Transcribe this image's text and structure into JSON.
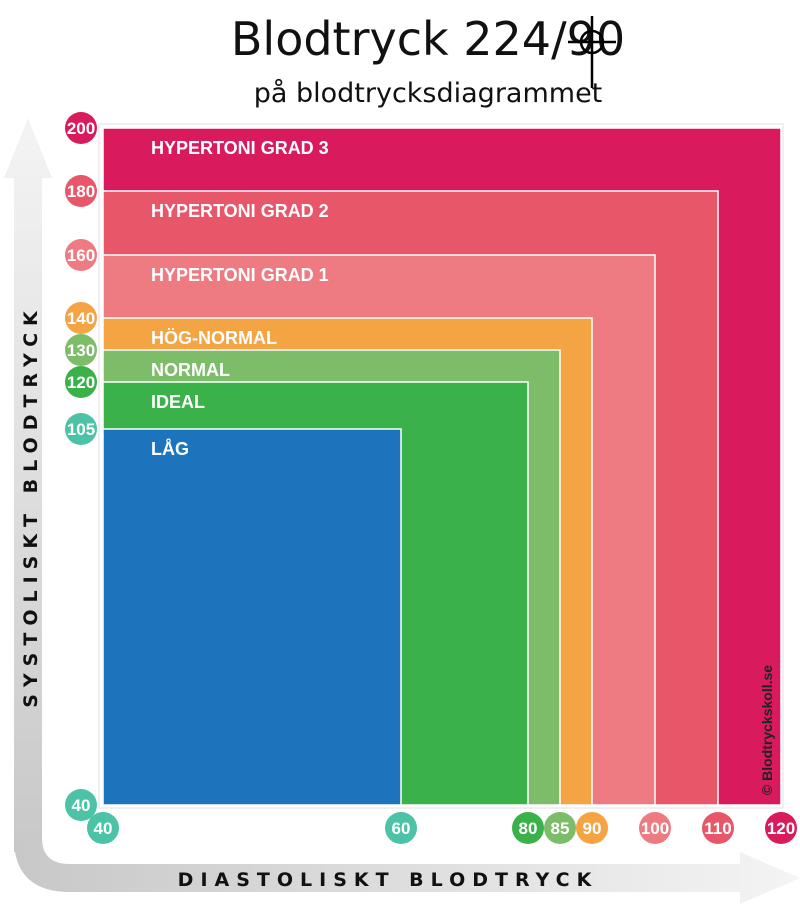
{
  "title": "Blodtryck 224/90",
  "subtitle": "på blodtrycksdiagrammet",
  "credit": "© Blodtryckskoll.se",
  "chart_data": {
    "type": "area",
    "ylabel": "SYSTOLISKT BLODTRYCK",
    "xlabel": "DIASTOLISKT BLODTRYCK",
    "y_ticks": [
      {
        "value": 200,
        "label": "200",
        "color": "#d91a5c"
      },
      {
        "value": 180,
        "label": "180",
        "color": "#e8566a"
      },
      {
        "value": 160,
        "label": "160",
        "color": "#ef7b82"
      },
      {
        "value": 140,
        "label": "140",
        "color": "#f5a444"
      },
      {
        "value": 130,
        "label": "130",
        "color": "#7dbd6a"
      },
      {
        "value": 120,
        "label": "120",
        "color": "#3bb14a"
      },
      {
        "value": 105,
        "label": "105",
        "color": "#4cc3a6"
      },
      {
        "value": 40,
        "label": "40",
        "color": "#4cc3a6"
      }
    ],
    "x_ticks": [
      {
        "value": 40,
        "label": "40",
        "color": "#4cc3a6"
      },
      {
        "value": 60,
        "label": "60",
        "color": "#4cc3a6"
      },
      {
        "value": 80,
        "label": "80",
        "color": "#3bb14a"
      },
      {
        "value": 85,
        "label": "85",
        "color": "#7dbd6a"
      },
      {
        "value": 90,
        "label": "90",
        "color": "#f5a444"
      },
      {
        "value": 100,
        "label": "100",
        "color": "#ef7b82"
      },
      {
        "value": 110,
        "label": "110",
        "color": "#e8566a"
      },
      {
        "value": 120,
        "label": "120",
        "color": "#d91a5c"
      }
    ],
    "zones": [
      {
        "label": "HYPERTONI GRAD 3",
        "max_systolic": 200,
        "max_diastolic": 120,
        "color": "#d91a5c"
      },
      {
        "label": "HYPERTONI GRAD 2",
        "max_systolic": 180,
        "max_diastolic": 110,
        "color": "#e8566a"
      },
      {
        "label": "HYPERTONI GRAD 1",
        "max_systolic": 160,
        "max_diastolic": 100,
        "color": "#ef7b82"
      },
      {
        "label": "HÖG-NORMAL",
        "max_systolic": 140,
        "max_diastolic": 90,
        "color": "#f5a444"
      },
      {
        "label": "NORMAL",
        "max_systolic": 130,
        "max_diastolic": 85,
        "color": "#7dbd6a"
      },
      {
        "label": "IDEAL",
        "max_systolic": 120,
        "max_diastolic": 80,
        "color": "#3bb14a"
      },
      {
        "label": "LÅG",
        "max_systolic": 105,
        "max_diastolic": 60,
        "color": "#1c75bc"
      }
    ],
    "marker": {
      "systolic": 224,
      "diastolic": 90
    }
  }
}
